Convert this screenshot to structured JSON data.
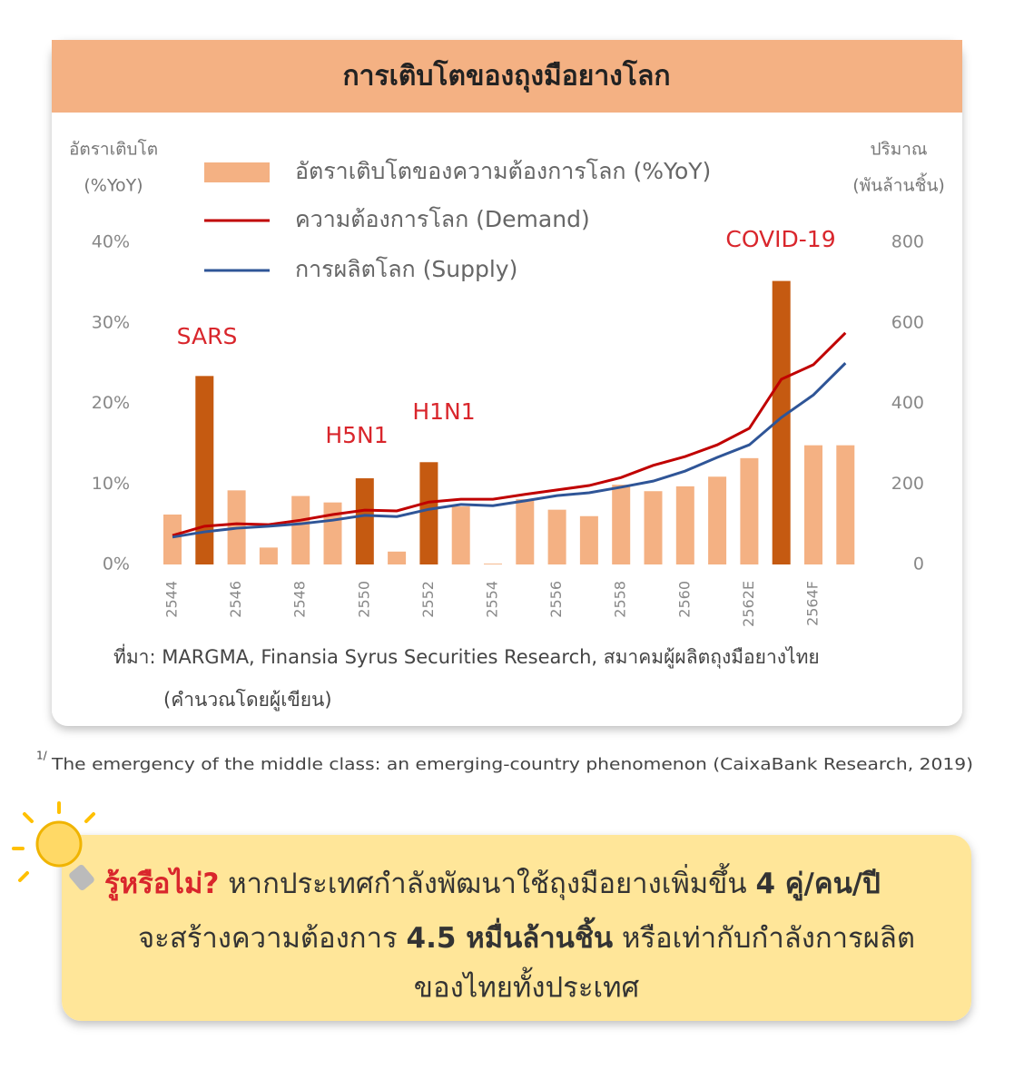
{
  "chart_data": {
    "type": "bar",
    "title": "การเติบโตของถุงมือยางโลก",
    "ylabel": [
      "อัตราเติบโต",
      "(%YoY)"
    ],
    "y2label": [
      "ปริมาณ",
      "(พันล้านชิ้น)"
    ],
    "categories": [
      "2544",
      null,
      "2546",
      null,
      "2548",
      null,
      "2550",
      null,
      "2552",
      null,
      "2554",
      null,
      "2556",
      null,
      "2558",
      null,
      "2560",
      null,
      "2562E",
      null,
      "2564F",
      null
    ],
    "series": [
      {
        "name": "อัตราเติบโตของความต้องการโลก (%YoY)",
        "type": "bar",
        "color": "#f4b183",
        "colors": [
          "#f4b183",
          "#c55a11",
          "#f4b183",
          "#f4b183",
          "#f4b183",
          "#f4b183",
          "#c55a11",
          "#f4b183",
          "#c55a11",
          "#f4b183",
          "#f4b183",
          "#f4b183",
          "#f4b183",
          "#f4b183",
          "#f4b183",
          "#f4b183",
          "#f4b183",
          "#f4b183",
          "#f4b183",
          "#c55a11",
          "#f4b183",
          "#f4b183"
        ],
        "values": [
          6.2,
          23.4,
          9.2,
          2.1,
          8.5,
          7.7,
          10.7,
          1.6,
          12.7,
          7.2,
          0.1,
          8.1,
          6.8,
          6.0,
          9.9,
          9.1,
          9.7,
          10.9,
          13.2,
          35.2,
          14.8,
          14.8
        ]
      },
      {
        "name": "ความต้องการโลก (Demand)",
        "type": "line",
        "axis": "y2",
        "color": "#c00000",
        "values": [
          72,
          95,
          101,
          99,
          110,
          124,
          135,
          133,
          155,
          162,
          162,
          174,
          185,
          196,
          216,
          246,
          268,
          297,
          338,
          460,
          496,
          575
        ]
      },
      {
        "name": "การผลิตโลก (Supply)",
        "type": "line",
        "axis": "y2",
        "color": "#2f5597",
        "values": [
          68,
          81,
          90,
          95,
          101,
          110,
          122,
          119,
          137,
          149,
          146,
          158,
          171,
          178,
          192,
          207,
          232,
          266,
          297,
          365,
          421,
          500
        ]
      }
    ],
    "ylim": [
      0,
      40
    ],
    "yticks": [
      {
        "value": 0,
        "label": "0%"
      },
      {
        "value": 10,
        "label": "10%"
      },
      {
        "value": 20,
        "label": "20%"
      },
      {
        "value": 30,
        "label": "30%"
      },
      {
        "value": 40,
        "label": "40%"
      }
    ],
    "y2lim": [
      0,
      800
    ],
    "y2ticks": [
      0,
      200,
      400,
      600,
      800
    ],
    "annotations": [
      "SARS",
      "H5N1",
      "H1N1",
      "COVID-19"
    ],
    "source": [
      "ที่มา: MARGMA, Finansia Syrus Securities Research, สมาคมผู้ผลิตถุงมือยางไทย",
      "(คำนวณโดยผู้เขียน)"
    ]
  },
  "footnote": {
    "mark": "1/",
    "text": "The emergency of the middle class: an emerging-country phenomenon (CaixaBank Research, 2019)"
  },
  "callout": [
    "รู้หรือไม่?",
    "หากประเทศกำลังพัฒนาใช้ถุงมือยางเพิ่มขึ้น",
    "4 คู่/คน/ปี",
    "จะสร้างความต้องการ",
    "4.5 หมื่นล้านชิ้น",
    "หรือเท่ากับกำลังการผลิต",
    "ของไทยทั้งประเทศ"
  ]
}
